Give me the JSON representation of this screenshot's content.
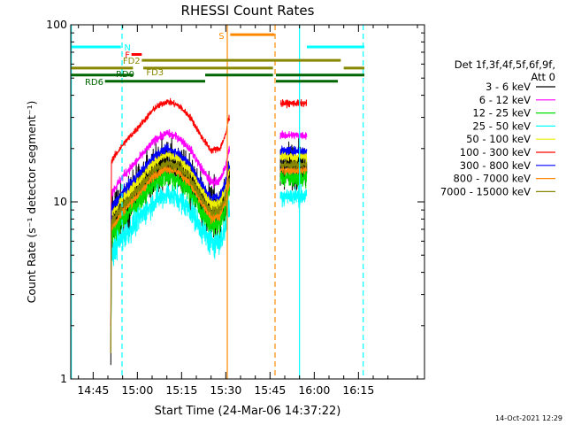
{
  "chart_data": {
    "type": "line",
    "title": "RHESSI Count Rates",
    "ylabel": "Count Rate (s⁻¹ detector segment⁻¹)",
    "xlabel": "Start Time (24-Mar-06 14:37:22)",
    "yscale": "log",
    "ylim": [
      1,
      100
    ],
    "xlim_minutes": [
      37.4,
      157.4
    ],
    "x_ticks": [
      {
        "t": 45,
        "label": "14:45"
      },
      {
        "t": 60,
        "label": "15:00"
      },
      {
        "t": 75,
        "label": "15:15"
      },
      {
        "t": 90,
        "label": "15:30"
      },
      {
        "t": 105,
        "label": "15:45"
      },
      {
        "t": 120,
        "label": "16:00"
      },
      {
        "t": 135,
        "label": "16:15"
      }
    ],
    "y_ticks": [
      {
        "v": 1,
        "label": "1"
      },
      {
        "v": 10,
        "label": "10"
      },
      {
        "v": 100,
        "label": "100"
      }
    ],
    "grid": false,
    "legend_position": "right",
    "legend_header": [
      "Det 1f,3f,4f,5f,6f,9f,",
      "Att 0"
    ],
    "series": [
      {
        "name": "3 - 6 keV",
        "color": "#000000",
        "scale": 0.45,
        "noise": 0.28
      },
      {
        "name": "6 - 12 keV",
        "color": "#ff00ff",
        "scale": 0.66,
        "noise": 0.05
      },
      {
        "name": "12 - 25 keV",
        "color": "#00dd00",
        "scale": 0.38,
        "noise": 0.12
      },
      {
        "name": "25 - 50 keV",
        "color": "#00ffff",
        "scale": 0.3,
        "noise": 0.12
      },
      {
        "name": "50 - 100 keV",
        "color": "#eeee00",
        "scale": 0.5,
        "noise": 0.07
      },
      {
        "name": "100 - 300 keV",
        "color": "#ff0000",
        "scale": 1.0,
        "noise": 0.04
      },
      {
        "name": "300 - 800 keV",
        "color": "#0000ff",
        "scale": 0.54,
        "noise": 0.05
      },
      {
        "name": "800 - 7000 keV",
        "color": "#ff8800",
        "scale": 0.42,
        "noise": 0.05
      },
      {
        "name": "7000 - 15000 keV",
        "color": "#888800",
        "scale": 0.45,
        "noise": 0.05
      }
    ],
    "red_reference_profile": [
      {
        "t": 50.8,
        "v": 2.0
      },
      {
        "t": 51.2,
        "v": 17.0
      },
      {
        "t": 55.0,
        "v": 21.0
      },
      {
        "t": 60.0,
        "v": 26.0
      },
      {
        "t": 66.0,
        "v": 34.0
      },
      {
        "t": 70.0,
        "v": 37.0
      },
      {
        "t": 74.0,
        "v": 35.0
      },
      {
        "t": 78.0,
        "v": 30.0
      },
      {
        "t": 82.0,
        "v": 23.0
      },
      {
        "t": 85.0,
        "v": 19.5
      },
      {
        "t": 88.0,
        "v": 20.0
      },
      {
        "t": 90.0,
        "v": 24.0
      },
      {
        "t": 91.0,
        "v": 30.0
      },
      {
        "t": 91.3,
        "v": 30.0
      }
    ],
    "second_segment": {
      "t_start": 108.5,
      "t_end": 117.5,
      "red_level": 36.0
    },
    "vertical_lines": [
      {
        "t": 37.6,
        "color": "#00ffff",
        "style": "solid"
      },
      {
        "t": 54.8,
        "color": "#00ffff",
        "style": "dashed"
      },
      {
        "t": 90.5,
        "color": "#ff8800",
        "style": "solid"
      },
      {
        "t": 106.7,
        "color": "#ff8800",
        "style": "dashed"
      },
      {
        "t": 115.0,
        "color": "#00ffff",
        "style": "solid"
      },
      {
        "t": 136.6,
        "color": "#00ffff",
        "style": "dashed"
      }
    ],
    "flag_bars": [
      {
        "label": "N",
        "color": "#00ffff",
        "segments": [
          [
            37.6,
            54.4
          ],
          [
            117.5,
            137.0
          ]
        ],
        "value": 75
      },
      {
        "label": "S",
        "color": "#ff8800",
        "segments": [
          [
            91.5,
            106.5
          ]
        ],
        "value": 88
      },
      {
        "label": "F",
        "color": "#ff0000",
        "segments": [
          [
            58.0,
            61.5
          ]
        ],
        "value": 68
      },
      {
        "label": "FD2",
        "color": "#888800",
        "segments": [
          [
            61.5,
            129.0
          ]
        ],
        "value": 63
      },
      {
        "label": "FD3",
        "color": "#888800",
        "segments": [
          [
            37.6,
            58.5
          ],
          [
            62.0,
            106.0
          ],
          [
            130.0,
            137.0
          ]
        ],
        "value": 57
      },
      {
        "label": "RD0",
        "color": "#006600",
        "segments": [
          [
            37.6,
            58.5
          ],
          [
            83.0,
            106.0
          ],
          [
            107.0,
            137.0
          ]
        ],
        "value": 52
      },
      {
        "label": "RD6",
        "color": "#006600",
        "segments": [
          [
            49.0,
            83.0
          ],
          [
            107.0,
            128.0
          ]
        ],
        "value": 48
      }
    ]
  },
  "footer": {
    "timestamp": "14-Oct-2021 12:29"
  }
}
